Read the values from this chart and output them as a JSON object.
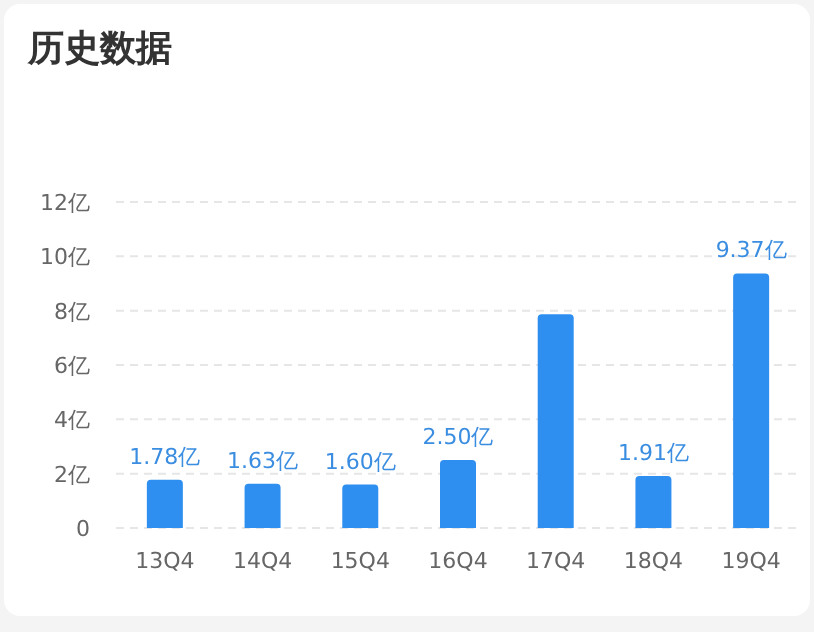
{
  "chart_data": {
    "type": "bar",
    "title": "历史数据",
    "categories": [
      "13Q4",
      "14Q4",
      "15Q4",
      "16Q4",
      "17Q4",
      "18Q4",
      "19Q4"
    ],
    "values": [
      1.78,
      1.63,
      1.6,
      2.5,
      7.87,
      1.91,
      9.37
    ],
    "value_labels": [
      "1.78亿",
      "1.63亿",
      "1.60亿",
      "2.50亿",
      null,
      "1.91亿",
      "9.37亿"
    ],
    "color": "#2f8ff0",
    "ylim": [
      0,
      12
    ],
    "yticks": [
      0,
      {
        "value": 2,
        "label": "2亿"
      },
      {
        "value": 4,
        "label": "4亿"
      },
      {
        "value": 6,
        "label": "6亿"
      },
      {
        "value": 8,
        "label": "8亿"
      },
      {
        "value": 10,
        "label": "10亿"
      },
      {
        "value": 12,
        "label": "12亿"
      }
    ],
    "grid": "y"
  }
}
